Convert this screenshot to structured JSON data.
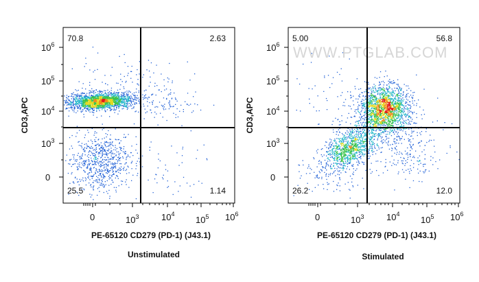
{
  "watermark": "WWW.PTGLAB.COM",
  "chart_data": [
    {
      "type": "scatter",
      "style": "density-dot-plot",
      "caption": "Unstimulated",
      "xlabel": "PE-65120 CD279 (PD-1) (J43.1)",
      "ylabel": "CD3,APC",
      "xscale": "biexponential",
      "yscale": "biexponential",
      "xticks": [
        "0",
        "10^3",
        "10^4",
        "10^5",
        "10^6"
      ],
      "yticks": [
        "0",
        "10^3",
        "10^4",
        "10^5",
        "10^6"
      ],
      "gate": {
        "x": "10^3.3",
        "y": "10^3.5"
      },
      "quadrants": {
        "top_left": "70.8",
        "top_right": "2.63",
        "bottom_left": "25.5",
        "bottom_right": "1.14"
      },
      "populations": [
        {
          "x_center": "10^2.4",
          "y_center": "10^4.3",
          "share": 0.708
        },
        {
          "x_center": "0",
          "y_center": "10^2.6",
          "share": 0.255
        }
      ]
    },
    {
      "type": "scatter",
      "style": "density-dot-plot",
      "caption": "Stimulated",
      "xlabel": "PE-65120 CD279 (PD-1) (J43.1)",
      "ylabel": "CD3,APC",
      "xscale": "biexponential",
      "yscale": "biexponential",
      "xticks": [
        "0",
        "10^3",
        "10^4",
        "10^5",
        "10^6"
      ],
      "yticks": [
        "0",
        "10^3",
        "10^4",
        "10^5",
        "10^6"
      ],
      "gate": {
        "x": "10^3.3",
        "y": "10^3.5"
      },
      "quadrants": {
        "top_left": "5.00",
        "top_right": "56.8",
        "bottom_left": "26.2",
        "bottom_right": "12.0"
      },
      "populations": [
        {
          "x_center": "10^3.8",
          "y_center": "10^4.1",
          "share": 0.568
        },
        {
          "x_center": "10^3.0",
          "y_center": "10^3.0",
          "share": 0.262
        }
      ]
    }
  ]
}
